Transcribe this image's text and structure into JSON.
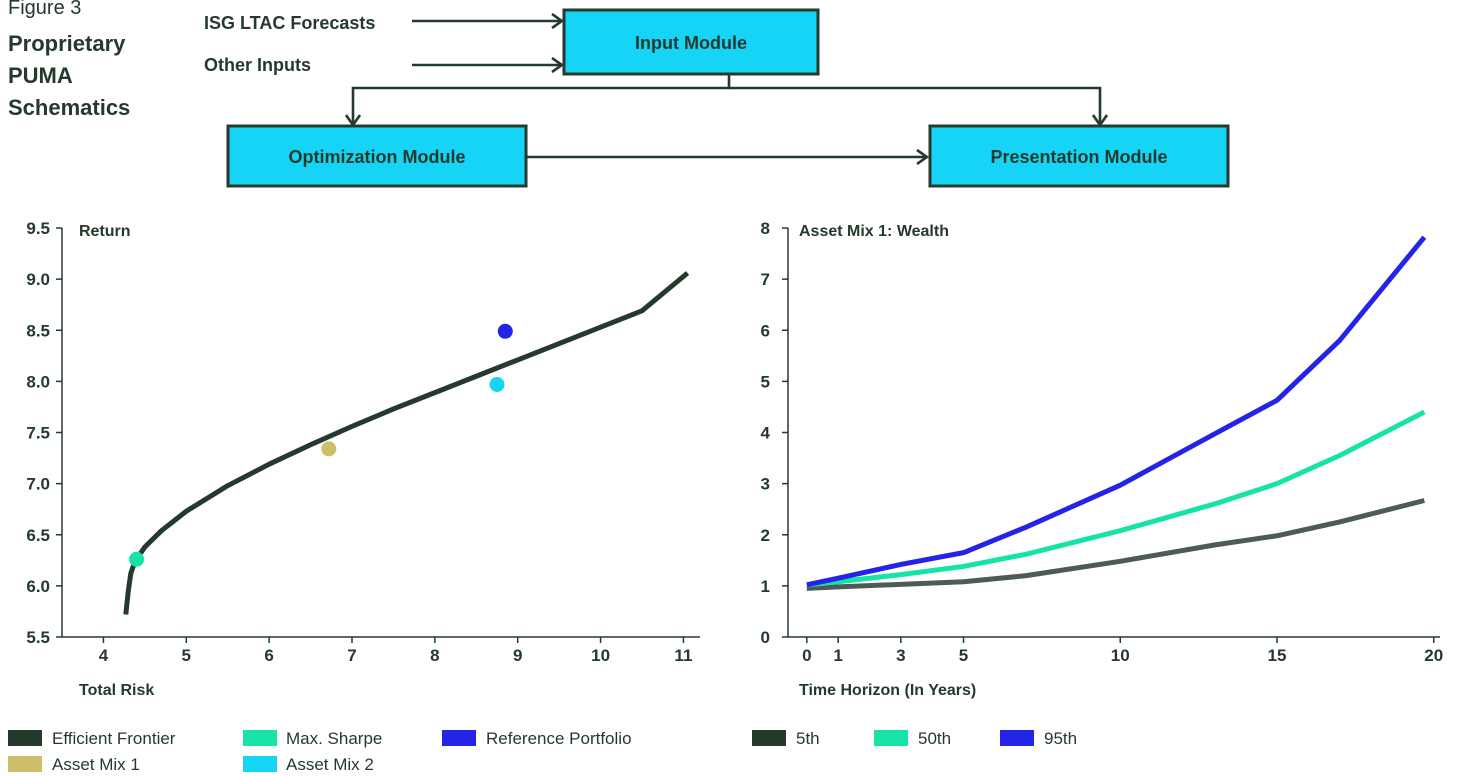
{
  "figure": {
    "label": "Figure 3",
    "title_lines": [
      "Proprietary",
      "PUMA",
      "Schematics"
    ]
  },
  "colors": {
    "dark": "#253a2c",
    "mint": "#16e3a6",
    "blue": "#2424e6",
    "gold": "#cdbf6a",
    "cyan": "#16d4f5",
    "gray": "#4d5a55"
  },
  "schematic": {
    "inputs": [
      "ISG LTAC Forecasts",
      "Other Inputs"
    ],
    "input_module": "Input Module",
    "optimization_module": "Optimization Module",
    "presentation_module": "Presentation Module"
  },
  "chart_data": [
    {
      "type": "line",
      "ylabel": "Return",
      "xlabel": "Total Risk",
      "xlim": [
        3.5,
        11.2
      ],
      "ylim": [
        5.5,
        9.5
      ],
      "x_ticks": [
        "4",
        "5",
        "6",
        "7",
        "8",
        "9",
        "10",
        "11"
      ],
      "y_ticks": [
        "5.5",
        "6.0",
        "6.5",
        "7.0",
        "7.5",
        "8.0",
        "8.5",
        "9.0",
        "9.5"
      ],
      "frontier": {
        "name": "Efficient Frontier",
        "x": [
          4.27,
          4.3,
          4.33,
          4.38,
          4.5,
          4.7,
          5.0,
          5.5,
          6.0,
          6.5,
          7.0,
          7.5,
          8.0,
          8.5,
          9.0,
          9.5,
          10.0,
          10.5,
          11.05
        ],
        "y": [
          5.72,
          5.95,
          6.12,
          6.24,
          6.38,
          6.54,
          6.73,
          6.98,
          7.19,
          7.38,
          7.56,
          7.73,
          7.89,
          8.05,
          8.21,
          8.37,
          8.53,
          8.69,
          9.06
        ]
      },
      "points": [
        {
          "name": "Max. Sharpe",
          "x": 4.4,
          "y": 6.26
        },
        {
          "name": "Reference Portfolio",
          "x": 8.85,
          "y": 8.49
        },
        {
          "name": "Asset Mix 2",
          "x": 8.75,
          "y": 7.97
        },
        {
          "name": "Asset Mix 1",
          "x": 6.72,
          "y": 7.34
        }
      ],
      "legend": [
        "Efficient Frontier",
        "Max. Sharpe",
        "Reference Portfolio",
        "Asset Mix 1",
        "Asset Mix 2"
      ]
    },
    {
      "type": "line",
      "title": "Asset Mix 1: Wealth",
      "xlabel": "Time Horizon (In Years)",
      "xlim": [
        -0.6,
        20.2
      ],
      "ylim": [
        0,
        8
      ],
      "x_ticks": [
        "0",
        "1",
        "3",
        "5",
        "10",
        "15",
        "20"
      ],
      "y_ticks": [
        "0",
        "1",
        "2",
        "3",
        "4",
        "5",
        "6",
        "7",
        "8"
      ],
      "x": [
        0,
        1,
        3,
        5,
        7,
        10,
        13,
        15,
        17,
        19.7
      ],
      "series": [
        {
          "name": "5th",
          "values": [
            0.95,
            0.98,
            1.03,
            1.08,
            1.2,
            1.48,
            1.8,
            1.98,
            2.25,
            2.67
          ]
        },
        {
          "name": "50th",
          "values": [
            1.02,
            1.08,
            1.22,
            1.38,
            1.62,
            2.08,
            2.6,
            3.0,
            3.55,
            4.4
          ]
        },
        {
          "name": "95th",
          "values": [
            1.02,
            1.15,
            1.42,
            1.65,
            2.15,
            2.97,
            3.97,
            4.63,
            5.8,
            7.82
          ]
        }
      ],
      "legend": [
        "5th",
        "50th",
        "95th"
      ]
    }
  ]
}
